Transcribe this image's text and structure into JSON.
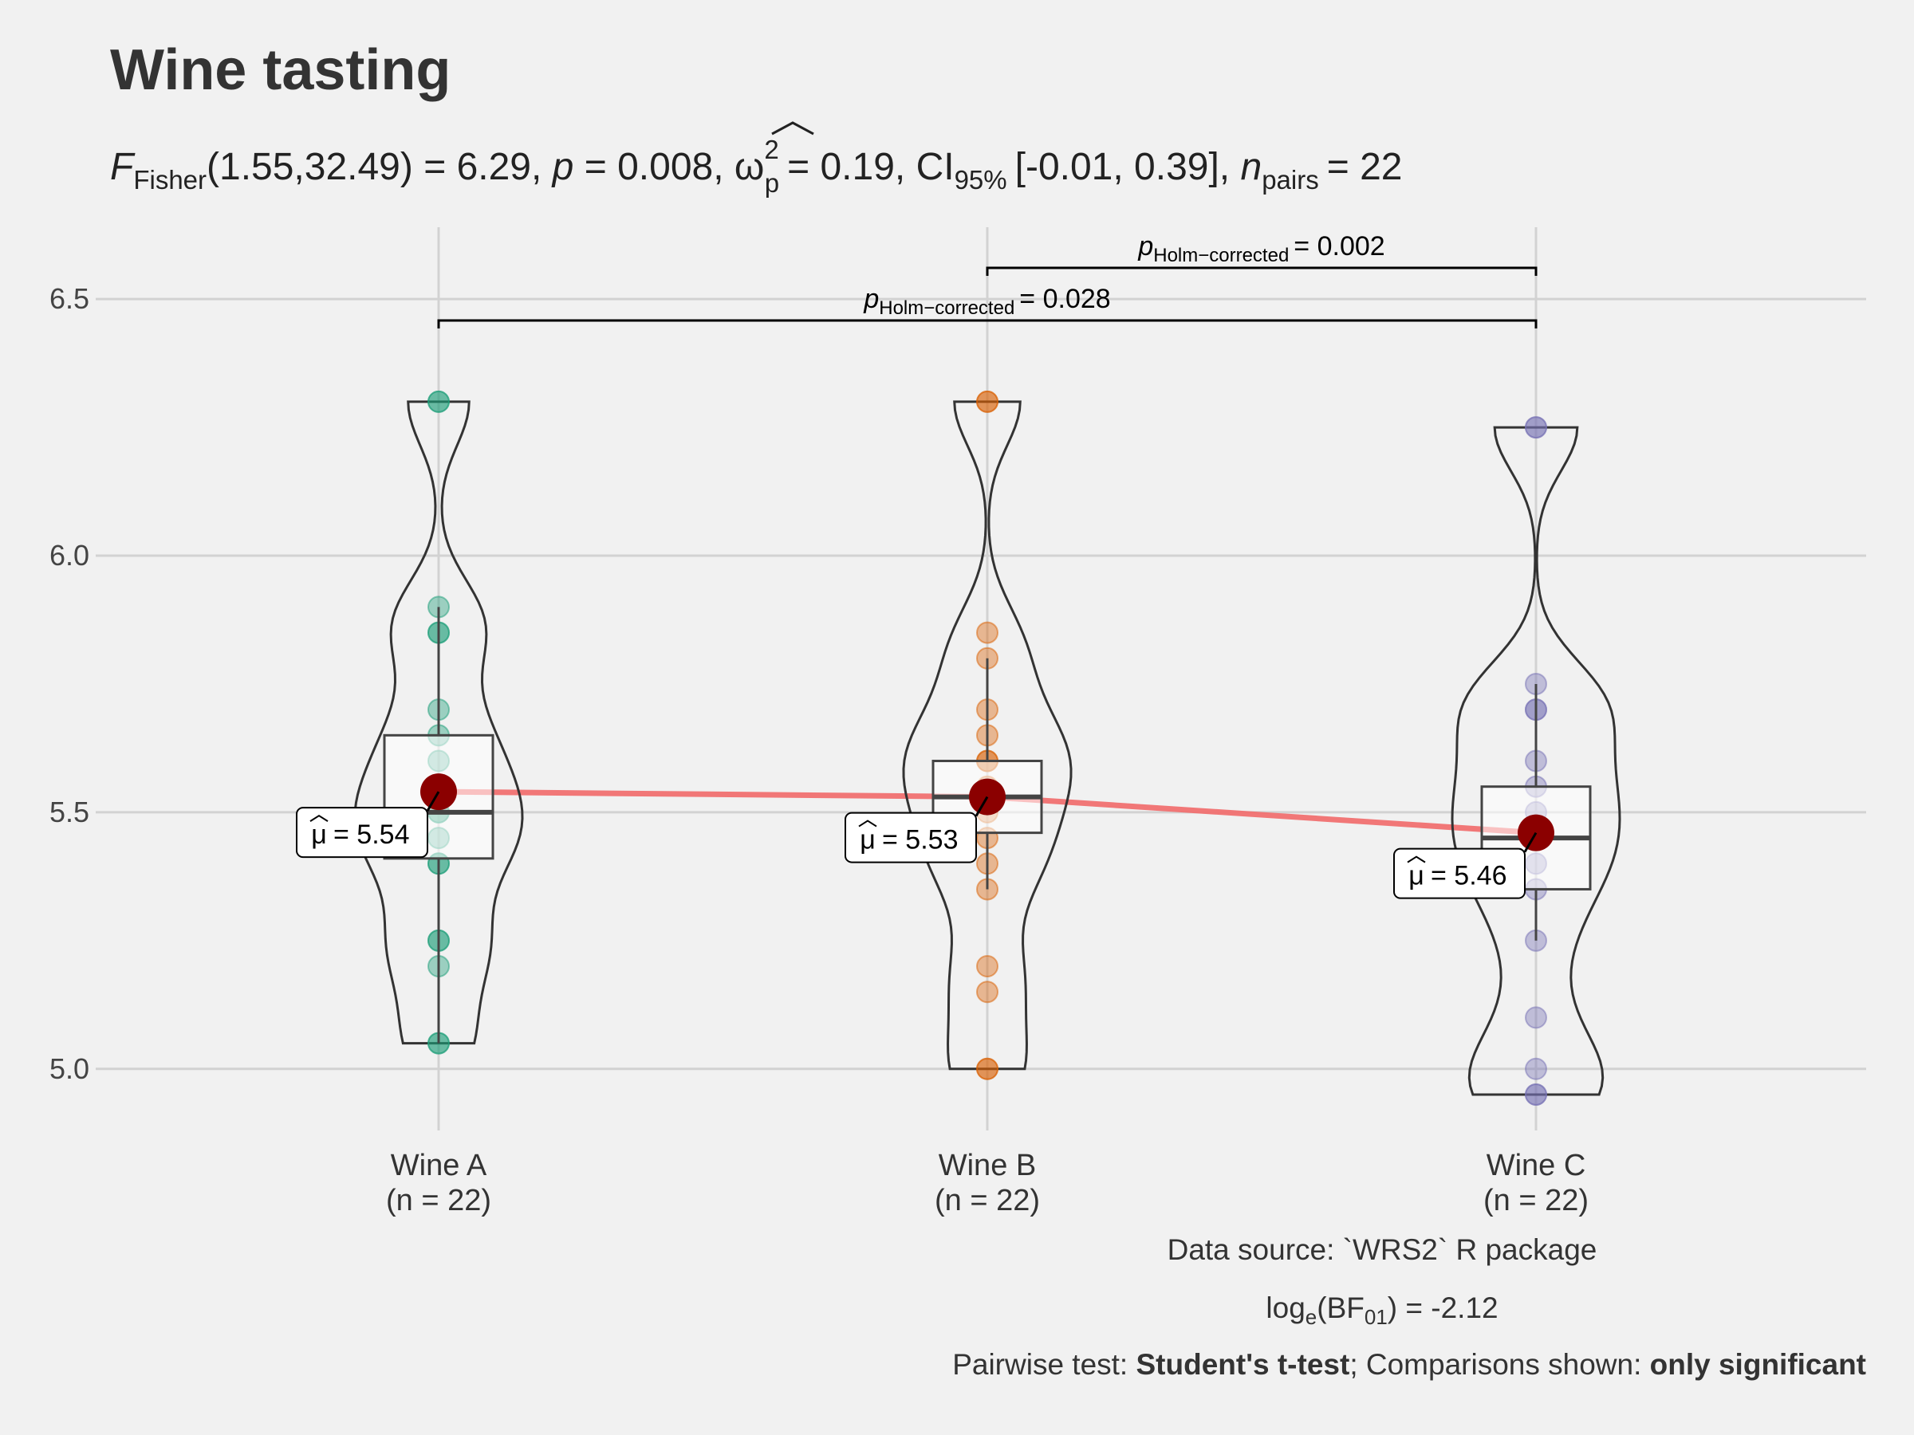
{
  "chart_data": {
    "type": "violin",
    "title": "Wine tasting",
    "subtitle": {
      "F_symbol": "F",
      "F_sub": "Fisher",
      "df_and_stat": "(1.55,32.49) = 6.29,",
      "p_symbol": "p",
      "p_value": "= 0.008,",
      "omega_symbol": "ω",
      "omega_sup": "2",
      "omega_sub": "p",
      "omega_value": "= 0.19,",
      "ci_symbol": "CI",
      "ci_sub": "95%",
      "ci_value": "[-0.01, 0.39],",
      "n_symbol": "n",
      "n_sub": "pairs",
      "n_value": "= 22"
    },
    "ylim": [
      4.88,
      6.64
    ],
    "y_ticks": [
      {
        "value": 5.0,
        "label": "5.0"
      },
      {
        "value": 5.5,
        "label": "5.5"
      },
      {
        "value": 6.0,
        "label": "6.0"
      },
      {
        "value": 6.5,
        "label": "6.5"
      }
    ],
    "grid": true,
    "groups": [
      {
        "name": "Wine A",
        "n_label": "(n = 22)",
        "color": "#1b9e77",
        "mean": 5.54,
        "mean_label": "= 5.54",
        "box": {
          "whisker_low": 5.05,
          "q1": 5.41,
          "median": 5.5,
          "q3": 5.65,
          "whisker_high": 5.9
        },
        "points": [
          5.05,
          5.05,
          5.2,
          5.25,
          5.25,
          5.4,
          5.4,
          5.45,
          5.5,
          5.5,
          5.55,
          5.6,
          5.65,
          5.7,
          5.85,
          5.85,
          5.9,
          6.3,
          6.3
        ]
      },
      {
        "name": "Wine B",
        "n_label": "(n = 22)",
        "color": "#d95f02",
        "mean": 5.53,
        "mean_label": "= 5.53",
        "box": {
          "whisker_low": 5.35,
          "q1": 5.46,
          "median": 5.53,
          "q3": 5.6,
          "whisker_high": 5.8
        },
        "points": [
          5.0,
          5.0,
          5.15,
          5.2,
          5.35,
          5.4,
          5.45,
          5.5,
          5.55,
          5.6,
          5.6,
          5.65,
          5.7,
          5.8,
          5.85,
          6.3,
          6.3
        ]
      },
      {
        "name": "Wine C",
        "n_label": "(n = 22)",
        "color": "#7570b3",
        "mean": 5.46,
        "mean_label": "= 5.46",
        "box": {
          "whisker_low": 5.25,
          "q1": 5.35,
          "median": 5.45,
          "q3": 5.55,
          "whisker_high": 5.75
        },
        "points": [
          4.95,
          4.95,
          5.0,
          5.1,
          5.25,
          5.35,
          5.4,
          5.45,
          5.5,
          5.55,
          5.6,
          5.7,
          5.7,
          5.75,
          6.25,
          6.25
        ]
      }
    ],
    "mean_marker_color": "#8b0000",
    "mean_line_color": "#f07070",
    "comparisons": [
      {
        "from": "Wine B",
        "to": "Wine C",
        "p_symbol": "p",
        "p_sub": "Holm−corrected",
        "p_value": "= 0.002"
      },
      {
        "from": "Wine A",
        "to": "Wine C",
        "p_symbol": "p",
        "p_sub": "Holm−corrected",
        "p_value": "= 0.028"
      }
    ],
    "caption": {
      "line1": "Data source: `WRS2` R package",
      "bf_prefix": "log",
      "bf_log_sub": "e",
      "bf_mid": "(BF",
      "bf_sub": "01",
      "bf_value": ") = -2.12",
      "pairwise_prefix": "Pairwise test: ",
      "pairwise_test": "Student's t-test",
      "comparisons_prefix": "; Comparisons shown: ",
      "comparisons_value": "only significant"
    }
  }
}
